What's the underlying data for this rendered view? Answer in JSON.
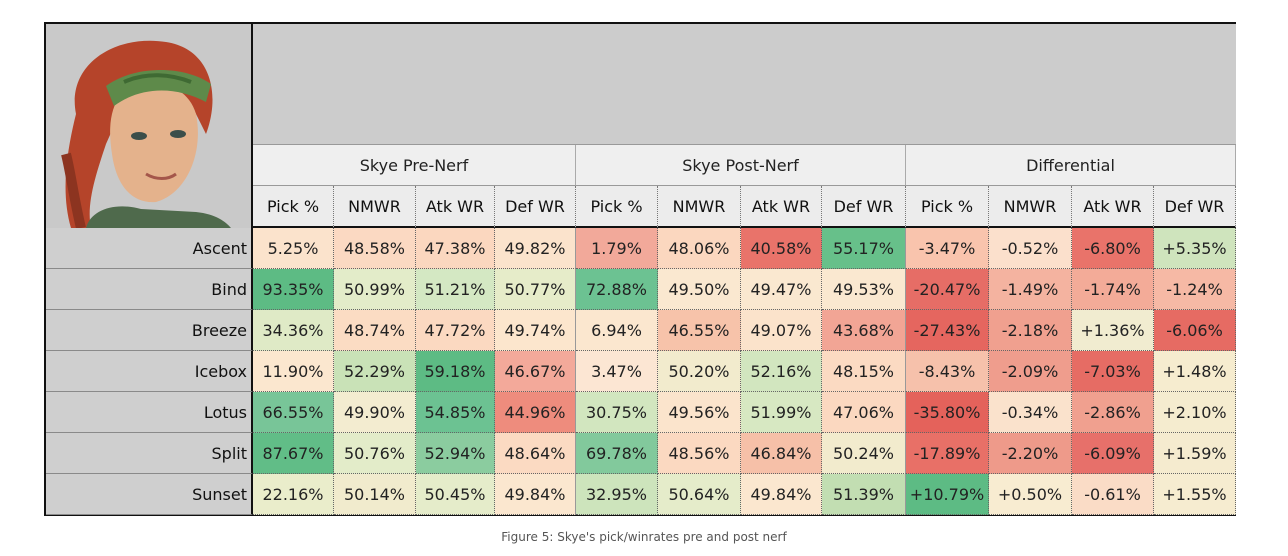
{
  "caption": "Figure 5: Skye's pick/winrates pre and post nerf",
  "portrait": {
    "icon": "agent-portrait-icon",
    "hair": "#b5442a",
    "band": "#5e8a4a",
    "skin": "#e4b28c"
  },
  "groups": [
    {
      "label": "Skye Pre-Nerf"
    },
    {
      "label": "Skye Post-Nerf"
    },
    {
      "label": "Differential"
    }
  ],
  "columns": [
    "Pick %",
    "NMWR",
    "Atk WR",
    "Def WR",
    "Pick %",
    "NMWR",
    "Atk WR",
    "Def WR",
    "Pick %",
    "NMWR",
    "Atk WR",
    "Def WR"
  ],
  "rows": [
    {
      "map": "Ascent",
      "values": [
        "5.25%",
        "48.58%",
        "47.38%",
        "49.82%",
        "1.79%",
        "48.06%",
        "40.58%",
        "55.17%",
        "-3.47%",
        "-0.52%",
        "-6.80%",
        "+5.35%"
      ],
      "colors": [
        "#fbe3cc",
        "#fbd9c2",
        "#fbd7bf",
        "#fbe3cc",
        "#f2a99a",
        "#fbd7bf",
        "#e9736a",
        "#67c08a",
        "#f9c4ad",
        "#fbe0cc",
        "#e9736a",
        "#cfe4bd"
      ]
    },
    {
      "map": "Bind",
      "values": [
        "93.35%",
        "50.99%",
        "51.21%",
        "50.77%",
        "72.88%",
        "49.50%",
        "49.47%",
        "49.53%",
        "-20.47%",
        "-1.49%",
        "-1.74%",
        "-1.24%"
      ],
      "colors": [
        "#5dbb84",
        "#e3ecc9",
        "#d4e8c3",
        "#e6ecc9",
        "#6cc292",
        "#fae8d0",
        "#fae8d0",
        "#fae8d0",
        "#e66d66",
        "#f4b3a0",
        "#f3ab98",
        "#f6b9a5"
      ]
    },
    {
      "map": "Breeze",
      "values": [
        "34.36%",
        "48.74%",
        "47.72%",
        "49.74%",
        "6.94%",
        "46.55%",
        "49.07%",
        "43.68%",
        "-27.43%",
        "-2.18%",
        "+1.36%",
        "-6.06%"
      ],
      "colors": [
        "#dfeac6",
        "#fbdcc3",
        "#fbd9c1",
        "#fce6cd",
        "#fbe7cf",
        "#f7c3aa",
        "#fbe3cb",
        "#f2a595",
        "#e5665f",
        "#f0a08f",
        "#f1ecd0",
        "#e66b63"
      ]
    },
    {
      "map": "Icebox",
      "values": [
        "11.90%",
        "52.29%",
        "59.18%",
        "46.67%",
        "3.47%",
        "50.20%",
        "52.16%",
        "48.15%",
        "-8.43%",
        "-2.09%",
        "-7.03%",
        "+1.48%"
      ],
      "colors": [
        "#fbe7cf",
        "#c9e2b7",
        "#5dbb84",
        "#f3a99a",
        "#fce6d3",
        "#f2ebcd",
        "#d2e6bf",
        "#fbdac2",
        "#f6c1ab",
        "#ef9d8d",
        "#e66c64",
        "#f6eccf"
      ]
    },
    {
      "map": "Lotus",
      "values": [
        "66.55%",
        "49.90%",
        "54.85%",
        "44.96%",
        "30.75%",
        "49.56%",
        "51.99%",
        "47.06%",
        "-35.80%",
        "-0.34%",
        "-2.86%",
        "+2.10%"
      ],
      "colors": [
        "#78c598",
        "#f3ecd0",
        "#6cc292",
        "#ee8c7d",
        "#d2e6bf",
        "#fbe4cc",
        "#d7e8c2",
        "#fbd8c0",
        "#e4625b",
        "#fae2cc",
        "#f0a08f",
        "#f5eccf"
      ]
    },
    {
      "map": "Split",
      "values": [
        "87.67%",
        "50.76%",
        "52.94%",
        "48.64%",
        "69.78%",
        "48.56%",
        "46.84%",
        "50.24%",
        "-17.89%",
        "-2.20%",
        "-6.09%",
        "+1.59%"
      ],
      "colors": [
        "#61bd87",
        "#e3ecc9",
        "#8bcc9f",
        "#fbdac2",
        "#82c99c",
        "#fbd9c1",
        "#f6c0a8",
        "#f2ebcd",
        "#e87067",
        "#ee9a8a",
        "#e7706a",
        "#f5ebcf"
      ]
    },
    {
      "map": "Sunset",
      "values": [
        "22.16%",
        "50.14%",
        "50.45%",
        "49.84%",
        "32.95%",
        "50.64%",
        "49.84%",
        "51.39%",
        "+10.79%",
        "+0.50%",
        "-0.61%",
        "+1.55%"
      ],
      "colors": [
        "#eaedcb",
        "#f1ebcd",
        "#e5ecca",
        "#fbe7cf",
        "#cde4bc",
        "#e5ecca",
        "#fbe7cf",
        "#c2deb2",
        "#5dbb84",
        "#f8ecd1",
        "#fadcc6",
        "#f6ecd0"
      ]
    }
  ]
}
